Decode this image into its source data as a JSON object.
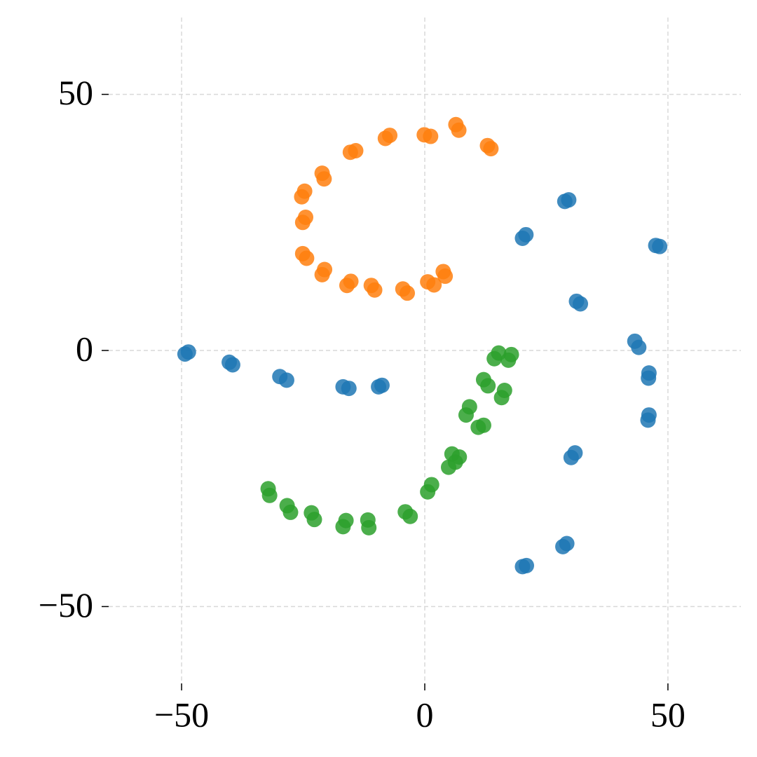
{
  "chart_data": {
    "type": "scatter",
    "xlim": [
      -65,
      65
    ],
    "ylim": [
      -65,
      65
    ],
    "xticks": [
      {
        "value": -50,
        "label": "−50"
      },
      0,
      50
    ],
    "yticks": [
      {
        "value": -50,
        "label": "−50"
      },
      0,
      50
    ],
    "grid": true,
    "series": [
      {
        "color": "#1f77b4",
        "x": [
          -49.3,
          -48.6,
          -40.2,
          -39.5,
          -29.8,
          -28.4,
          -16.8,
          -15.6,
          -8.8,
          -9.5,
          20.1,
          20.8,
          28.8,
          29.6,
          47.5,
          48.3,
          31.2,
          32.0,
          43.2,
          44.0,
          46.1,
          46.0,
          46.1,
          45.9,
          30.9,
          30.1,
          29.2,
          28.4,
          20.1,
          20.9
        ],
        "y": [
          -0.7,
          -0.3,
          -2.3,
          -2.8,
          -5.1,
          -5.8,
          -7.1,
          -7.4,
          -6.8,
          -7.1,
          21.9,
          22.6,
          29.1,
          29.4,
          20.5,
          20.3,
          9.6,
          9.1,
          1.8,
          0.6,
          -4.4,
          -5.4,
          -12.6,
          -13.6,
          -20.0,
          -20.9,
          -37.7,
          -38.3,
          -42.2,
          -42.0
        ]
      },
      {
        "color": "#ff7f0e",
        "x": [
          -0.1,
          1.2,
          6.4,
          7.0,
          12.9,
          13.6,
          -8.1,
          -7.2,
          -15.3,
          -14.2,
          -21.1,
          -20.7,
          -24.7,
          -25.3,
          -25.1,
          -24.5,
          -25.1,
          -24.3,
          -21.1,
          -20.6,
          -16.0,
          -15.2,
          -11.0,
          -10.3,
          -4.5,
          -3.6,
          0.6,
          1.9,
          3.8,
          4.2
        ],
        "y": [
          42.1,
          41.8,
          44.1,
          43.0,
          40.0,
          39.4,
          41.4,
          42.0,
          38.7,
          39.0,
          34.6,
          33.5,
          31.1,
          30.0,
          25.0,
          26.0,
          18.9,
          18.0,
          14.8,
          15.8,
          12.7,
          13.5,
          12.7,
          11.8,
          12.0,
          11.2,
          13.4,
          12.8,
          15.4,
          14.5
        ]
      },
      {
        "color": "#2ca02c",
        "x": [
          14.3,
          15.2,
          17.2,
          17.8,
          12.1,
          13.0,
          15.8,
          16.4,
          8.5,
          9.2,
          12.1,
          11.0,
          7.1,
          6.3,
          4.9,
          5.6,
          0.6,
          1.4,
          -3.0,
          -4.0,
          -11.7,
          -11.5,
          -16.8,
          -16.2,
          -23.3,
          -22.7,
          -28.3,
          -27.6,
          -31.9,
          -32.2
        ],
        "y": [
          -1.6,
          -0.5,
          -1.9,
          -0.8,
          -5.7,
          -6.9,
          -9.2,
          -7.8,
          -12.6,
          -11.0,
          -14.6,
          -15.0,
          -20.8,
          -21.8,
          -22.8,
          -20.2,
          -27.6,
          -26.2,
          -32.4,
          -31.5,
          -33.1,
          -34.6,
          -34.4,
          -33.2,
          -31.7,
          -33.0,
          -30.3,
          -31.6,
          -28.3,
          -27.0
        ]
      }
    ]
  }
}
